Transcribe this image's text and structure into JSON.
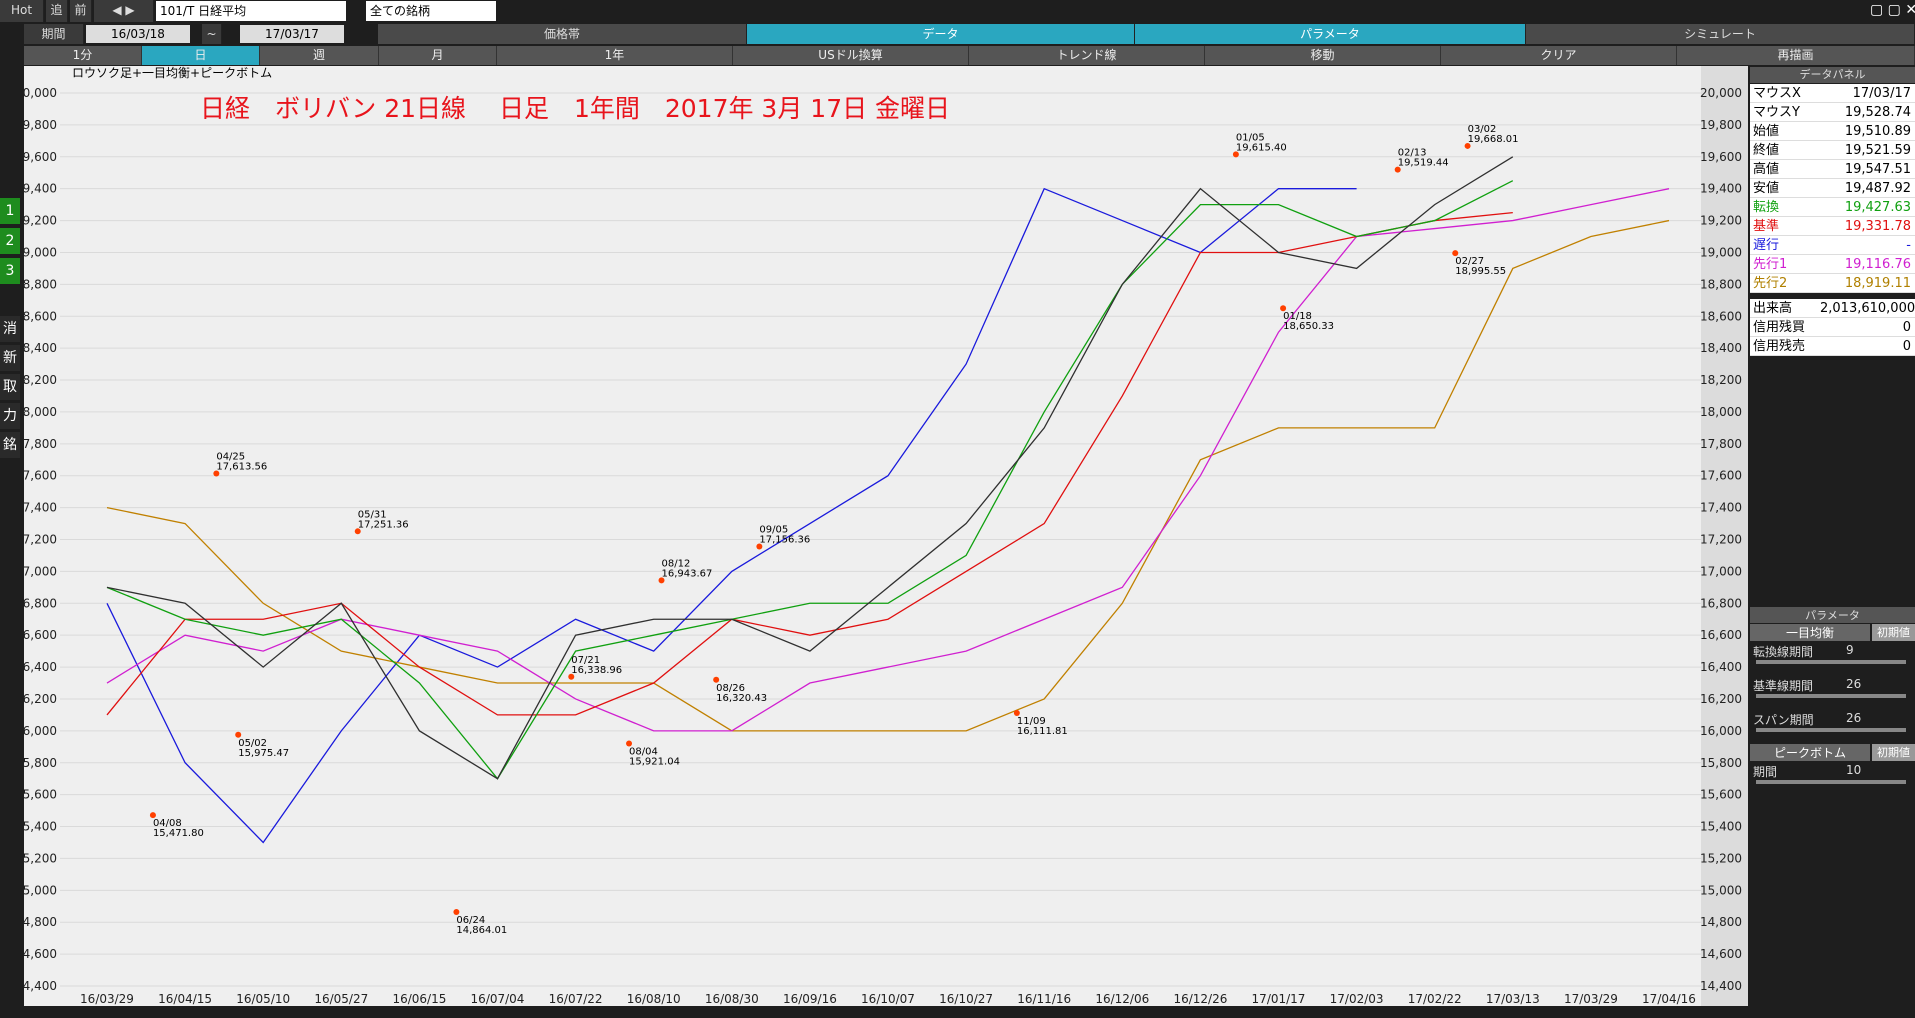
{
  "toolbar": {
    "hot": "Hot",
    "follow": "追",
    "prev": "前",
    "symbol": "101/T 日経平均",
    "universe": "全ての銘柄",
    "period_label": "期間",
    "start": "16/03/18",
    "tilde": "~",
    "end": "17/03/17",
    "tabs": [
      "価格帯",
      "データ",
      "パラメータ",
      "シミュレート"
    ]
  },
  "toolbar2": [
    "1分",
    "日",
    "週",
    "月",
    "1年",
    "USドル換算",
    "トレンド線",
    "移動",
    "クリア",
    "再描画"
  ],
  "sidebar": [
    "1",
    "2",
    "3",
    "消",
    "新",
    "取",
    "力",
    "銘"
  ],
  "chart_data": {
    "type": "line",
    "title": "日経　ボリバン 21日線　 日足　1年間　2017年 3月 17日 金曜日",
    "legend_text": "ロウソク足+一目均衡+ピークボトム",
    "categories": [
      "16/03/29",
      "16/04/15",
      "16/05/10",
      "16/05/27",
      "16/06/15",
      "16/07/04",
      "16/07/22",
      "16/08/10",
      "16/08/30",
      "16/09/16",
      "16/10/07",
      "16/10/27",
      "16/11/16",
      "16/12/06",
      "16/12/26",
      "17/01/17",
      "17/02/03",
      "17/02/22",
      "17/03/13",
      "17/03/29",
      "17/04/16"
    ],
    "series": [
      {
        "color": "#1a1adc",
        "values": [
          16800,
          15800,
          15300,
          16000,
          16600,
          16400,
          16700,
          16500,
          17000,
          17300,
          17600,
          18300,
          19400,
          19200,
          19000,
          19400,
          19400,
          null,
          null,
          null,
          null
        ]
      },
      {
        "color": "#c08000",
        "values": [
          17400,
          17300,
          16800,
          16500,
          16400,
          16300,
          16300,
          16300,
          16000,
          16000,
          16000,
          16000,
          16200,
          16800,
          17700,
          17900,
          17900,
          17900,
          18900,
          19100,
          19200
        ]
      },
      {
        "color": "#d020d0",
        "values": [
          16300,
          16600,
          16500,
          16700,
          16600,
          16500,
          16200,
          16000,
          16000,
          16300,
          16400,
          16500,
          16700,
          16900,
          17600,
          18500,
          19100,
          19150,
          19200,
          19300,
          19400
        ]
      },
      {
        "color": "#e01010",
        "values": [
          16100,
          16700,
          16700,
          16800,
          16400,
          16100,
          16100,
          16300,
          16700,
          16600,
          16700,
          17000,
          17300,
          18100,
          19000,
          19000,
          19100,
          19200,
          19250,
          null,
          null
        ]
      },
      {
        "color": "#10a010",
        "values": [
          16900,
          16700,
          16600,
          16700,
          16300,
          15700,
          16500,
          16600,
          16700,
          16800,
          16800,
          17100,
          18000,
          18800,
          19300,
          19300,
          19100,
          19200,
          19450,
          null,
          null
        ]
      },
      {
        "color": "#303030",
        "values": [
          16900,
          16800,
          16400,
          16800,
          16000,
          15700,
          16600,
          16700,
          16700,
          16500,
          16900,
          17300,
          17900,
          18800,
          19400,
          19000,
          18900,
          19300,
          19600,
          null,
          null
        ]
      }
    ],
    "ylim": [
      14400,
      20000
    ],
    "yticks": [
      {
        "value": 14400,
        "label": "14,400"
      },
      {
        "value": 14600,
        "label": "14,600"
      },
      {
        "value": 14800,
        "label": "14,800"
      },
      {
        "value": 15000,
        "label": "15,000"
      },
      {
        "value": 15200,
        "label": "15,200"
      },
      {
        "value": 15400,
        "label": "15,400"
      },
      {
        "value": 15600,
        "label": "15,600"
      },
      {
        "value": 15800,
        "label": "15,800"
      },
      {
        "value": 16000,
        "label": "16,000"
      },
      {
        "value": 16200,
        "label": "16,200"
      },
      {
        "value": 16400,
        "label": "16,400"
      },
      {
        "value": 16600,
        "label": "16,600"
      },
      {
        "value": 16800,
        "label": "16,800"
      },
      {
        "value": 17000,
        "label": "17,000"
      },
      {
        "value": 17200,
        "label": "17,200"
      },
      {
        "value": 17400,
        "label": "17,400"
      },
      {
        "value": 17600,
        "label": "17,600"
      },
      {
        "value": 17800,
        "label": "17,800"
      },
      {
        "value": 18000,
        "label": "18,000"
      },
      {
        "value": 18200,
        "label": "18,200"
      },
      {
        "value": 18400,
        "label": "18,400"
      },
      {
        "value": 18600,
        "label": "18,600"
      },
      {
        "value": 18800,
        "label": "18,800"
      },
      {
        "value": 19000,
        "label": "19,000"
      },
      {
        "value": 19200,
        "label": "19,200"
      },
      {
        "value": 19400,
        "label": "19,400"
      },
      {
        "value": 19600,
        "label": "19,600"
      },
      {
        "value": 19800,
        "label": "19,800"
      },
      {
        "value": 20000,
        "label": "20,000"
      }
    ],
    "peaks": [
      {
        "date": "04/25",
        "value": 17613.56,
        "label": "17,613.56"
      },
      {
        "date": "05/31",
        "value": 17251.36,
        "label": "17,251.36"
      },
      {
        "date": "07/21",
        "value": 16338.96,
        "label": "16,338.96"
      },
      {
        "date": "08/12",
        "value": 16943.67,
        "label": "16,943.67"
      },
      {
        "date": "09/05",
        "value": 17156.36,
        "label": "17,156.36"
      },
      {
        "date": "01/05",
        "value": 19615.4,
        "label": "19,615.40"
      },
      {
        "date": "02/13",
        "value": 19519.44,
        "label": "19,519.44"
      },
      {
        "date": "03/02",
        "value": 19668.01,
        "label": "19,668.01"
      }
    ],
    "bottoms": [
      {
        "date": "04/08",
        "value": 15471.8,
        "label": "15,471.80"
      },
      {
        "date": "05/02",
        "value": 15975.47,
        "label": "15,975.47"
      },
      {
        "date": "06/24",
        "value": 14864.01,
        "label": "14,864.01"
      },
      {
        "date": "08/04",
        "value": 15921.04,
        "label": "15,921.04"
      },
      {
        "date": "08/26",
        "value": 16320.43,
        "label": "16,320.43"
      },
      {
        "date": "11/09",
        "value": 16111.81,
        "label": "16,111.81"
      },
      {
        "date": "01/18",
        "value": 18650.33,
        "label": "18,650.33"
      },
      {
        "date": "02/27",
        "value": 18995.55,
        "label": "18,995.55"
      }
    ]
  },
  "data_panel": {
    "title": "データパネル",
    "rows": [
      [
        "マウスX",
        "17/03/17"
      ],
      [
        "マウスY",
        "19,528.74"
      ],
      [
        "始値",
        "19,510.89"
      ],
      [
        "終値",
        "19,521.59"
      ],
      [
        "高値",
        "19,547.51"
      ],
      [
        "安値",
        "19,487.92"
      ],
      [
        "転換",
        "19,427.63"
      ],
      [
        "基準",
        "19,331.78"
      ],
      [
        "遅行",
        "-"
      ],
      [
        "先行1",
        "19,116.76"
      ],
      [
        "先行2",
        "18,919.11"
      ],
      [
        "出来高",
        "2,013,610,000"
      ],
      [
        "信用残買",
        "0"
      ],
      [
        "信用残売",
        "0"
      ]
    ]
  },
  "param_panel": {
    "title": "パラメータ",
    "group1": "一目均衡",
    "default1": "初期値",
    "params1": [
      [
        "転換線期間",
        "9"
      ],
      [
        "基準線期間",
        "26"
      ],
      [
        "スパン期間",
        "26"
      ]
    ],
    "group2": "ピークボトム",
    "default2": "初期値",
    "params2": [
      [
        "期間",
        "10"
      ]
    ]
  }
}
